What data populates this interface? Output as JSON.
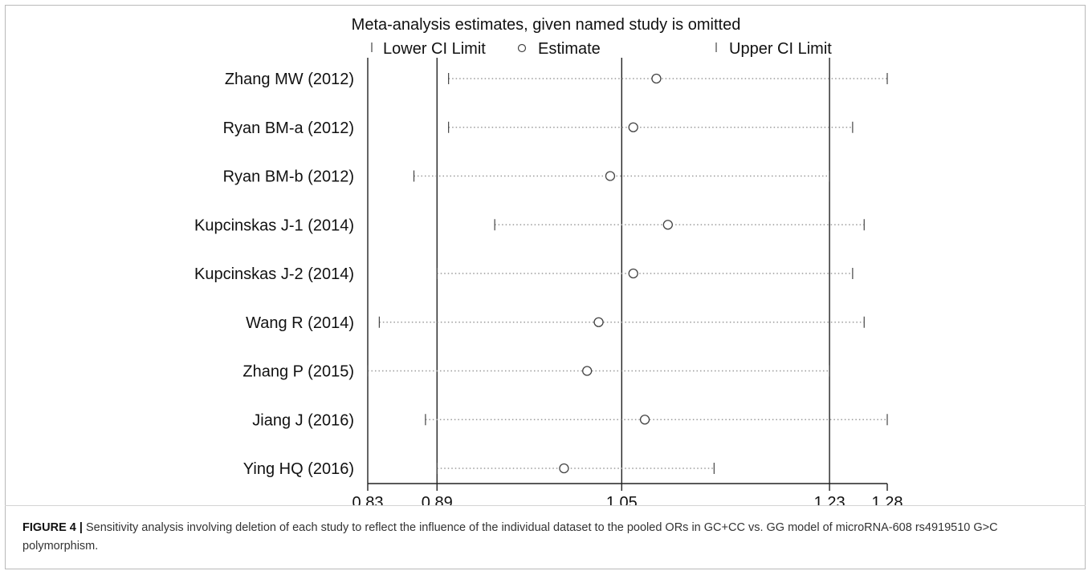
{
  "figure": {
    "label": "FIGURE 4",
    "separator": "|",
    "caption": "Sensitivity analysis involving deletion of each study to reflect the influence of the individual dataset to the pooled ORs in GC+CC vs. GG model of microRNA-608 rs4919510 G>C polymorphism."
  },
  "colors": {
    "axis": "#222222",
    "ci_dots": "#9a9a9a",
    "marker": "#444444",
    "text": "#111111"
  },
  "chart_data": {
    "type": "scatter",
    "title": "Meta-analysis estimates, given named study is omitted",
    "legend": {
      "placement": "top",
      "entries": [
        {
          "symbol": "bar",
          "label": "Lower CI Limit"
        },
        {
          "symbol": "circle",
          "label": "Estimate"
        },
        {
          "symbol": "bar",
          "label": "Upper CI Limit"
        }
      ]
    },
    "xlim": [
      0.83,
      1.28
    ],
    "xticks": [
      0.83,
      0.89,
      1.05,
      1.23,
      1.28
    ],
    "xtick_labels": [
      "0.83",
      "0.89",
      "1.05",
      "1.23",
      "1.28"
    ],
    "reference_lines": [
      0.89,
      1.05,
      1.23
    ],
    "grid": false,
    "studies": [
      {
        "name": "Zhang MW (2012)",
        "lower": 0.9,
        "estimate": 1.08,
        "upper": 1.28
      },
      {
        "name": "Ryan BM-a (2012)",
        "lower": 0.9,
        "estimate": 1.06,
        "upper": 1.25
      },
      {
        "name": "Ryan BM-b (2012)",
        "lower": 0.87,
        "estimate": 1.04,
        "upper": 1.23
      },
      {
        "name": "Kupcinskas J-1 (2014)",
        "lower": 0.94,
        "estimate": 1.09,
        "upper": 1.26
      },
      {
        "name": "Kupcinskas J-2 (2014)",
        "lower": 0.89,
        "estimate": 1.06,
        "upper": 1.25
      },
      {
        "name": "Wang R (2014)",
        "lower": 0.84,
        "estimate": 1.03,
        "upper": 1.26
      },
      {
        "name": "Zhang P (2015)",
        "lower": 0.83,
        "estimate": 1.02,
        "upper": 1.23
      },
      {
        "name": "Jiang J (2016)",
        "lower": 0.88,
        "estimate": 1.07,
        "upper": 1.28
      },
      {
        "name": "Ying HQ (2016)",
        "lower": 0.89,
        "estimate": 1.0,
        "upper": 1.13
      }
    ]
  }
}
